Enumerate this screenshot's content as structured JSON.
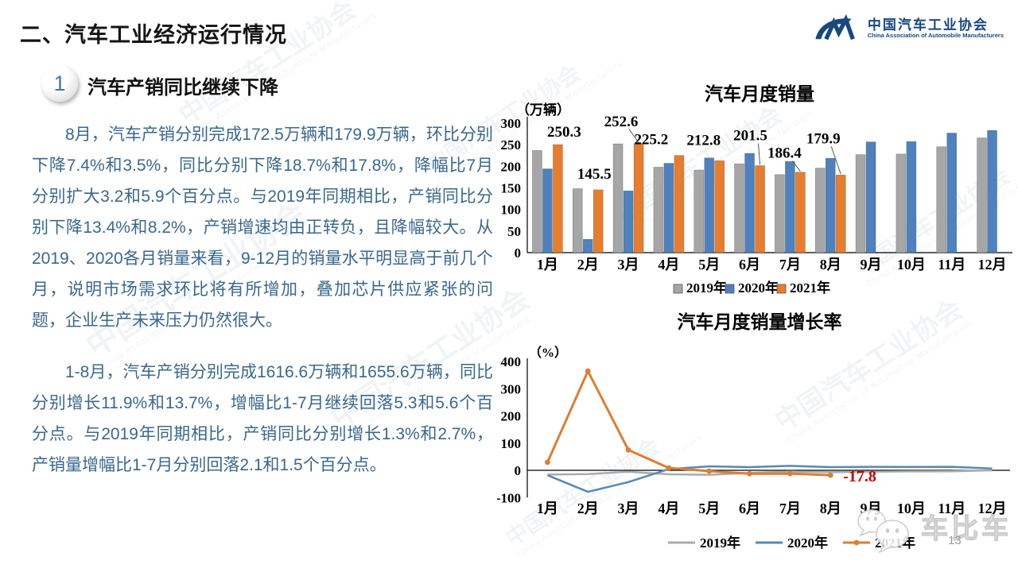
{
  "slide": {
    "title": "二、汽车工业经济运行情况",
    "page_number": "13"
  },
  "logo": {
    "org_cn": "中国汽车工业协会",
    "org_en": "China Association of Automobile Manufacturers",
    "color": "#17487e"
  },
  "section": {
    "badge": "1",
    "heading": "汽车产销同比继续下降"
  },
  "body": {
    "paragraph1": "8月，汽车产销分别完成172.5万辆和179.9万辆，环比分别下降7.4%和3.5%，同比分别下降18.7%和17.8%，降幅比7月分别扩大3.2和5.9个百分点。与2019年同期相比，产销同比分别下降13.4%和8.2%，产销增速均由正转负，且降幅较大。从2019、2020各月销量来看，9-12月的销量水平明显高于前几个月，说明市场需求环比将有所增加，叠加芯片供应紧张的问题，企业生产未来压力仍然很大。",
    "paragraph2": "1-8月，汽车产销分别完成1616.6万辆和1655.6万辆，同比分别增长11.9%和13.7%，增幅比1-7月继续回落5.3和5.6个百分点。与2019年同期相比，产销同比分别增长1.3%和2.7%，产销量增幅比1-7月分别回落2.1和1.5个百分点。",
    "text_color": "#3a688c"
  },
  "watermark": {
    "text": "中国汽车工业协会",
    "text_en": "China Association of Automobile Manufacturers",
    "footer_brand": "车比车"
  },
  "chart_data": [
    {
      "type": "bar",
      "title": "汽车月度销量",
      "unit_label": "（万辆）",
      "categories": [
        "1月",
        "2月",
        "3月",
        "4月",
        "5月",
        "6月",
        "7月",
        "8月",
        "9月",
        "10月",
        "11月",
        "12月"
      ],
      "series": [
        {
          "name": "2019年",
          "color": "#a6a6a6",
          "values": [
            236.7,
            148.2,
            252.0,
            198.0,
            191.3,
            205.7,
            180.8,
            195.8,
            227.1,
            228.4,
            245.4,
            265.8
          ]
        },
        {
          "name": "2020年",
          "color": "#4e81bd",
          "values": [
            194.1,
            31.0,
            143.0,
            207.0,
            219.4,
            230.0,
            211.2,
            218.6,
            256.5,
            257.3,
            277.0,
            283.1
          ]
        },
        {
          "name": "2021年",
          "color": "#e87d2e",
          "values": [
            250.3,
            145.5,
            252.6,
            225.2,
            212.8,
            201.5,
            186.4,
            179.9
          ],
          "data_labels": [
            "250.3",
            "145.5",
            "252.6",
            "225.2",
            "212.8",
            "201.5",
            "186.4",
            "179.9"
          ]
        }
      ],
      "ylim": [
        0,
        300
      ],
      "ytick_step": 50,
      "yticks": [
        "0",
        "50",
        "100",
        "150",
        "200",
        "250",
        "300"
      ],
      "legend_position": "bottom",
      "grid": false
    },
    {
      "type": "line",
      "title": "汽车月度销量增长率",
      "unit_label": "（%）",
      "categories": [
        "1月",
        "2月",
        "3月",
        "4月",
        "5月",
        "6月",
        "7月",
        "8月",
        "9月",
        "10月",
        "11月",
        "12月"
      ],
      "series": [
        {
          "name": "2019年",
          "color": "#ababab",
          "values": [
            -15.8,
            -13.8,
            -5.2,
            -14.6,
            -16.4,
            -9.6,
            -4.3,
            -6.9,
            -5.2,
            -4.1,
            -3.6,
            -0.1
          ]
        },
        {
          "name": "2020年",
          "color": "#5588b8",
          "values": [
            -18.0,
            -79.1,
            -43.3,
            4.4,
            14.5,
            11.6,
            16.4,
            11.6,
            12.8,
            12.5,
            12.6,
            6.4
          ]
        },
        {
          "name": "2021年",
          "color": "#dd7e32",
          "marker": true,
          "values": [
            29.5,
            364.8,
            74.9,
            8.6,
            -3.1,
            -12.4,
            -11.9,
            -17.8
          ]
        }
      ],
      "annotation": {
        "text": "-17.8",
        "color": "#c00000"
      },
      "ylim": [
        -100,
        400
      ],
      "ytick_step": 100,
      "yticks": [
        "-100",
        "0",
        "100",
        "200",
        "300",
        "400"
      ],
      "legend_position": "bottom",
      "grid": false
    }
  ]
}
